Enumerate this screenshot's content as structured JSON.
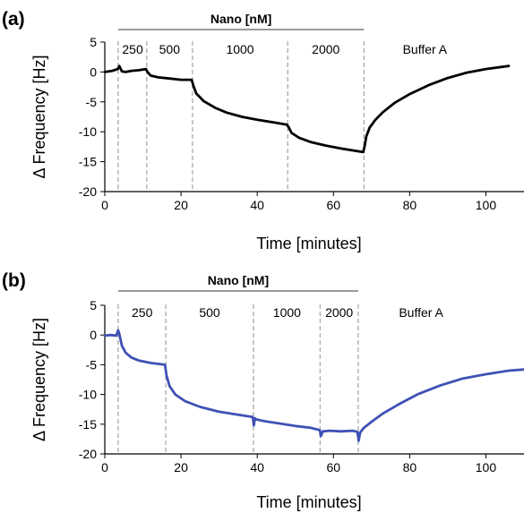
{
  "chart_data": [
    {
      "type": "line",
      "panel_label": "(a)",
      "xlabel": "Time [minutes]",
      "ylabel": "Δ Frequency [Hz]",
      "xlim": [
        0,
        110
      ],
      "ylim": [
        -20,
        5
      ],
      "xticks": [
        0,
        20,
        40,
        60,
        80,
        100
      ],
      "yticks": [
        5,
        0,
        -5,
        -10,
        -15,
        -20
      ],
      "grid": false,
      "bracket": {
        "label": "Nano [nM]",
        "x_start": 3.5,
        "x_end": 68
      },
      "dividers": [
        3.5,
        11,
        23,
        48,
        68
      ],
      "annotations": [
        {
          "text": "250",
          "x": 7.3,
          "y": 3.8
        },
        {
          "text": "500",
          "x": 17,
          "y": 3.8
        },
        {
          "text": "1000",
          "x": 35.5,
          "y": 3.8
        },
        {
          "text": "2000",
          "x": 58,
          "y": 3.8
        },
        {
          "text": "Buffer A",
          "x": 84,
          "y": 3.8
        }
      ],
      "series": [
        {
          "color": "#000000",
          "x": [
            0,
            2,
            3.4,
            3.8,
            4.5,
            5.5,
            7,
            9,
            10.8,
            11.2,
            12,
            14,
            17,
            20,
            22.8,
            23.3,
            24,
            26,
            29,
            32,
            36,
            40,
            44,
            47.8,
            48.3,
            49,
            51,
            54,
            58,
            62,
            66,
            67.8,
            68.2,
            68.6,
            69.5,
            71,
            73,
            76,
            80,
            85,
            90,
            95,
            100,
            106
          ],
          "y": [
            0,
            0.2,
            0.5,
            1.0,
            0.1,
            0.0,
            0.2,
            0.3,
            0.5,
            0.0,
            -0.6,
            -0.9,
            -1.1,
            -1.3,
            -1.3,
            -2.4,
            -3.6,
            -4.9,
            -6.0,
            -6.8,
            -7.5,
            -8.0,
            -8.4,
            -8.8,
            -9.3,
            -10.2,
            -11.0,
            -11.7,
            -12.3,
            -12.8,
            -13.2,
            -13.4,
            -12.3,
            -10.8,
            -9.3,
            -8.0,
            -6.7,
            -5.2,
            -3.7,
            -2.2,
            -1.0,
            -0.1,
            0.5,
            1.0
          ]
        }
      ]
    },
    {
      "type": "line",
      "panel_label": "(b)",
      "xlabel": "Time [minutes]",
      "ylabel": "Δ Frequency [Hz]",
      "xlim": [
        0,
        110
      ],
      "ylim": [
        -20,
        5
      ],
      "xticks": [
        0,
        20,
        40,
        60,
        80,
        100
      ],
      "yticks": [
        5,
        0,
        -5,
        -10,
        -15,
        -20
      ],
      "grid": false,
      "bracket": {
        "label": "Nano [nM]",
        "x_start": 3.5,
        "x_end": 66.5
      },
      "dividers": [
        3.5,
        16,
        39,
        56.5,
        66.5
      ],
      "annotations": [
        {
          "text": "250",
          "x": 9.8,
          "y": 3.8
        },
        {
          "text": "500",
          "x": 27.5,
          "y": 3.8
        },
        {
          "text": "1000",
          "x": 47.8,
          "y": 3.8
        },
        {
          "text": "2000",
          "x": 61.5,
          "y": 3.8
        },
        {
          "text": "Buffer A",
          "x": 83,
          "y": 3.8
        }
      ],
      "series": [
        {
          "color": "#3f51b5",
          "x": [
            0,
            1.5,
            3.0,
            3.5,
            3.8,
            4.5,
            5.5,
            7,
            9,
            12,
            15.8,
            16.2,
            17,
            18.5,
            21,
            25,
            30,
            35,
            38.8,
            39.1,
            39.4,
            39.8,
            42,
            46,
            50,
            54,
            56.4,
            56.7,
            57.2,
            59,
            62,
            65,
            66.3,
            66.6,
            67,
            68,
            70,
            73,
            77,
            82,
            88,
            94,
            100,
            106,
            110
          ],
          "y": [
            -0.1,
            0.0,
            -0.1,
            0.8,
            0.2,
            -1.8,
            -3.0,
            -3.8,
            -4.3,
            -4.7,
            -5.0,
            -6.8,
            -8.6,
            -10.0,
            -11.1,
            -12.1,
            -12.9,
            -13.4,
            -13.8,
            -15.2,
            -14.0,
            -14.2,
            -14.5,
            -14.9,
            -15.3,
            -15.6,
            -16.0,
            -17.0,
            -16.2,
            -16.1,
            -16.2,
            -16.1,
            -16.3,
            -17.8,
            -16.4,
            -15.6,
            -14.6,
            -13.2,
            -11.7,
            -10.0,
            -8.5,
            -7.3,
            -6.6,
            -6.0,
            -5.8
          ]
        }
      ]
    }
  ]
}
